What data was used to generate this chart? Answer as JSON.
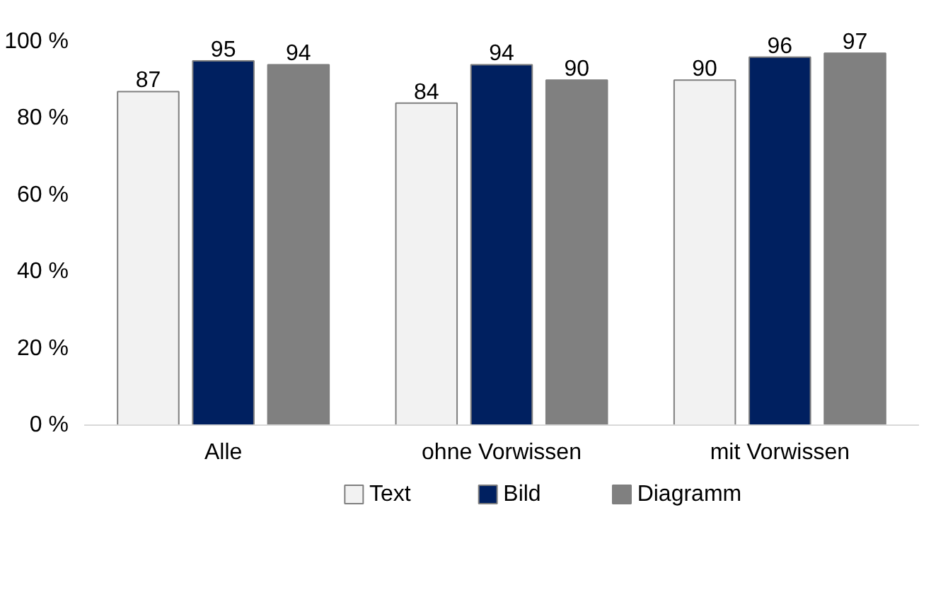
{
  "chart_data": {
    "type": "bar",
    "categories": [
      "Alle",
      "ohne Vorwissen",
      "mit Vorwissen"
    ],
    "series": [
      {
        "name": "Text",
        "color": "#f2f2f2",
        "values": [
          87,
          84,
          90
        ]
      },
      {
        "name": "Bild",
        "color": "#002060",
        "values": [
          95,
          94,
          96
        ]
      },
      {
        "name": "Diagramm",
        "color": "#808080",
        "values": [
          94,
          90,
          97
        ]
      }
    ],
    "ylim": [
      0,
      100
    ],
    "yticks": [
      {
        "value": 0,
        "label": "0 %"
      },
      {
        "value": 20,
        "label": "20 %"
      },
      {
        "value": 40,
        "label": "40 %"
      },
      {
        "value": 60,
        "label": "60 %"
      },
      {
        "value": 80,
        "label": "80 %"
      },
      {
        "value": 100,
        "label": "100 %"
      }
    ],
    "data_labels": true,
    "grid": false,
    "legend": "bottom"
  }
}
